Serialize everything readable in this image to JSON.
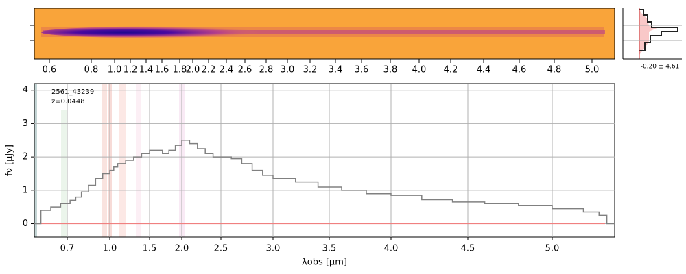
{
  "chart_data": [
    {
      "type": "image",
      "xticks": [
        0.6,
        0.8,
        {
          "value": 1.0,
          "label": "1.0"
        },
        1.2,
        1.4,
        1.6,
        1.8,
        {
          "value": 2.0,
          "label": "2.0"
        },
        2.2,
        2.4,
        2.6,
        2.8,
        {
          "value": 3.0,
          "label": "3.0"
        },
        3.2,
        3.4,
        3.6,
        3.8,
        {
          "value": 4.0,
          "label": "4.0"
        },
        4.2,
        4.4,
        4.6,
        4.8,
        {
          "value": 5.0,
          "label": "5.0"
        }
      ],
      "profile_label": "-0.20 ± 4.61"
    },
    {
      "type": "line",
      "annotations": [
        "2561_43239",
        "z=0.0448"
      ],
      "xlabel": "λobs [μm]",
      "ylabel": "fν [μJy]",
      "xlim": [
        0.6,
        5.4
      ],
      "ylim": [
        -0.4,
        4.2
      ],
      "xticks": [
        0.7,
        {
          "value": 1.0,
          "label": "1.0"
        },
        1.5,
        {
          "value": 2.0,
          "label": "2.0"
        },
        2.5,
        {
          "value": 3.0,
          "label": "3.0"
        },
        3.5,
        {
          "value": 4.0,
          "label": "4.0"
        },
        4.5,
        {
          "value": 5.0,
          "label": "5.0"
        }
      ],
      "yticks": [
        0,
        1,
        2,
        3,
        4
      ],
      "grid": true,
      "series": [
        {
          "color": "#808080",
          "x": [
            0.6,
            0.62,
            0.65,
            0.68,
            0.72,
            0.76,
            0.8,
            0.85,
            0.9,
            0.95,
            1.0,
            1.05,
            1.1,
            1.2,
            1.3,
            1.4,
            1.5,
            1.6,
            1.7,
            1.8,
            1.9,
            2.0,
            2.1,
            2.2,
            2.3,
            2.4,
            2.5,
            2.6,
            2.7,
            2.8,
            2.9,
            3.0,
            3.2,
            3.4,
            3.6,
            3.8,
            4.0,
            4.2,
            4.4,
            4.6,
            4.8,
            5.0,
            5.2,
            5.3,
            5.35
          ],
          "values": [
            0,
            0.4,
            0.5,
            0.6,
            0.7,
            0.8,
            0.95,
            1.15,
            1.35,
            1.5,
            1.6,
            1.7,
            1.8,
            1.9,
            2.0,
            2.1,
            2.2,
            2.2,
            2.1,
            2.2,
            2.35,
            2.5,
            2.4,
            2.25,
            2.1,
            2.0,
            2.0,
            1.95,
            1.8,
            1.6,
            1.45,
            1.35,
            1.25,
            1.1,
            1.0,
            0.9,
            0.85,
            0.72,
            0.65,
            0.6,
            0.55,
            0.45,
            0.35,
            0.25,
            0
          ]
        }
      ]
    }
  ]
}
